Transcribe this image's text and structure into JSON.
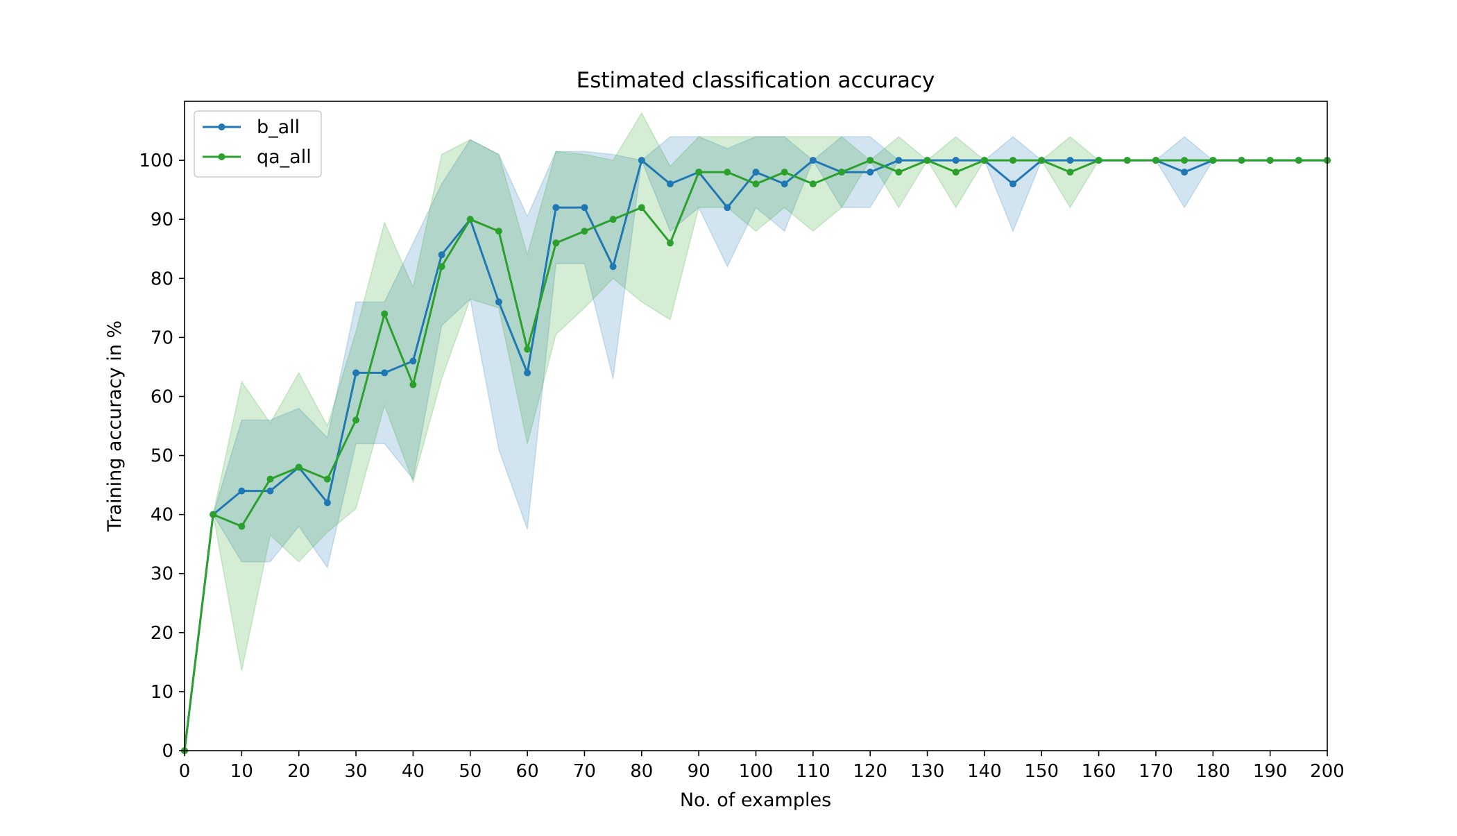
{
  "colors": {
    "b_all": "#1f77b4",
    "qa_all": "#2ca02c",
    "axes": "#000000",
    "background": "#ffffff"
  },
  "chart_data": {
    "type": "line",
    "title": "Estimated classification accuracy",
    "xlabel": "No. of examples",
    "ylabel": "Training accuracy in %",
    "xlim": [
      0,
      200
    ],
    "ylim": [
      0,
      110
    ],
    "xticks": [
      0,
      10,
      20,
      30,
      40,
      50,
      60,
      70,
      80,
      90,
      100,
      110,
      120,
      130,
      140,
      150,
      160,
      170,
      180,
      190,
      200
    ],
    "yticks": [
      0,
      10,
      20,
      30,
      40,
      50,
      60,
      70,
      80,
      90,
      100
    ],
    "grid": false,
    "legend_position": "top-left",
    "x": [
      0,
      5,
      10,
      15,
      20,
      25,
      30,
      35,
      40,
      45,
      50,
      55,
      60,
      65,
      70,
      75,
      80,
      85,
      90,
      95,
      100,
      105,
      110,
      115,
      120,
      125,
      130,
      135,
      140,
      145,
      150,
      155,
      160,
      165,
      170,
      175,
      180,
      185,
      190,
      195,
      200
    ],
    "series": [
      {
        "name": "b_all",
        "color": "#1f77b4",
        "values": [
          0,
          40,
          44,
          44,
          48,
          42,
          64,
          64,
          66,
          84,
          90,
          76,
          64,
          92,
          92,
          82,
          100,
          96,
          98,
          92,
          98,
          96,
          100,
          98,
          98,
          100,
          100,
          100,
          100,
          96,
          100,
          100,
          100,
          100,
          100,
          98,
          100,
          100,
          100,
          100,
          100
        ],
        "lower": [
          0,
          40,
          32,
          32,
          38,
          31,
          52,
          52,
          46,
          72,
          76.5,
          51,
          37.5,
          82.5,
          82.5,
          63,
          100,
          88,
          92,
          82,
          92,
          88,
          100,
          92,
          92,
          100,
          100,
          100,
          100,
          88,
          100,
          100,
          100,
          100,
          100,
          92,
          100,
          100,
          100,
          100,
          100
        ],
        "upper": [
          0,
          40,
          56,
          56,
          58,
          53,
          76,
          76,
          86,
          96,
          103.5,
          101,
          90.5,
          101.5,
          101.5,
          101,
          100,
          104,
          104,
          102,
          104,
          104,
          100,
          104,
          104,
          100,
          100,
          100,
          100,
          104,
          100,
          100,
          100,
          100,
          100,
          104,
          100,
          100,
          100,
          100,
          100
        ]
      },
      {
        "name": "qa_all",
        "color": "#2ca02c",
        "values": [
          0,
          40,
          38,
          46,
          48,
          46,
          56,
          74,
          62,
          82,
          90,
          88,
          68,
          86,
          88,
          90,
          92,
          86,
          98,
          98,
          96,
          98,
          96,
          98,
          100,
          98,
          100,
          98,
          100,
          100,
          100,
          98,
          100,
          100,
          100,
          100,
          100,
          100,
          100,
          100,
          100
        ],
        "lower": [
          0,
          40,
          13.5,
          36.5,
          32,
          37,
          41,
          58.5,
          45.5,
          63,
          76.5,
          75,
          52,
          70.5,
          75,
          80,
          76,
          73,
          92,
          92,
          88,
          92,
          88,
          92,
          100,
          92,
          100,
          92,
          100,
          100,
          100,
          92,
          100,
          100,
          100,
          100,
          100,
          100,
          100,
          100,
          100
        ],
        "upper": [
          0,
          40,
          62.5,
          55.5,
          64,
          55,
          71,
          89.5,
          78.5,
          101,
          103.5,
          101,
          84,
          101.5,
          101,
          100,
          108,
          99,
          104,
          104,
          104,
          104,
          104,
          104,
          100,
          104,
          100,
          104,
          100,
          100,
          100,
          104,
          100,
          100,
          100,
          100,
          100,
          100,
          100,
          100,
          100
        ]
      }
    ]
  }
}
